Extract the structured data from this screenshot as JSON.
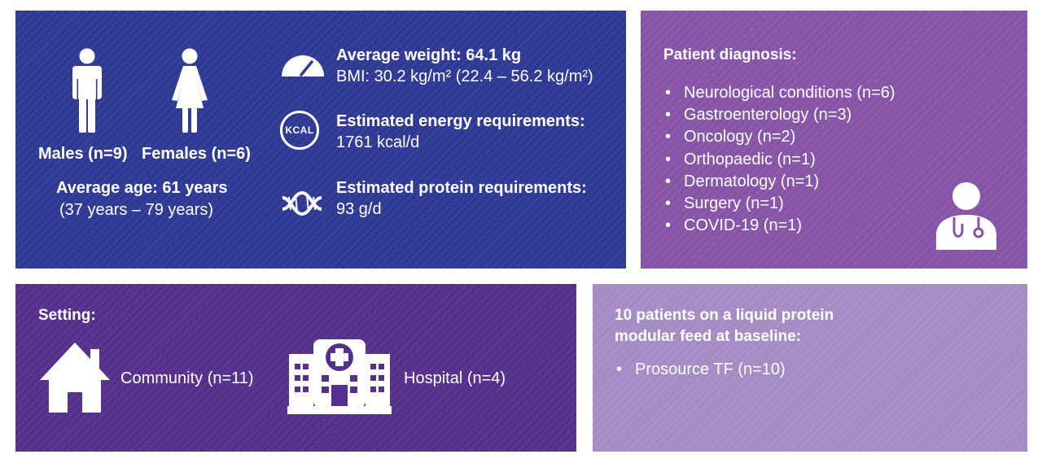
{
  "demographics": {
    "males_label": "Males (n=9)",
    "females_label": "Females (n=6)",
    "age_title": "Average age: 61 years",
    "age_range": "(37 years – 79 years)",
    "weight_title": "Average weight: 64.1 kg",
    "bmi_line": "BMI: 30.2 kg/m² (22.4 – 56.2 kg/m²)",
    "energy_title": "Estimated energy requirements:",
    "energy_value": "1761 kcal/d",
    "kcal_icon_text": "KCAL",
    "protein_title": "Estimated protein requirements:",
    "protein_value": "93 g/d"
  },
  "diagnosis": {
    "title": "Patient diagnosis:",
    "items": [
      "Neurological conditions (n=6)",
      "Gastroenterology (n=3)",
      "Oncology (n=2)",
      "Orthopaedic (n=1)",
      "Dermatology (n=1)",
      "Surgery (n=1)",
      "COVID-19 (n=1)"
    ]
  },
  "setting": {
    "title": "Setting:",
    "community_label": "Community (n=11)",
    "hospital_label": "Hospital (n=4)"
  },
  "feed": {
    "title_line1": "10 patients on a liquid protein",
    "title_line2": "modular feed at baseline:",
    "items": [
      "Prosource TF (n=10)"
    ]
  },
  "colors": {
    "demographics_panel": "#2e3a93",
    "diagnosis_panel": "#8755a8",
    "setting_panel": "#55308c",
    "feed_panel": "#a58cc4"
  },
  "icons": [
    "male-icon",
    "female-icon",
    "gauge-icon",
    "kcal-icon",
    "dna-icon",
    "doctor-icon",
    "house-icon",
    "hospital-icon"
  ]
}
